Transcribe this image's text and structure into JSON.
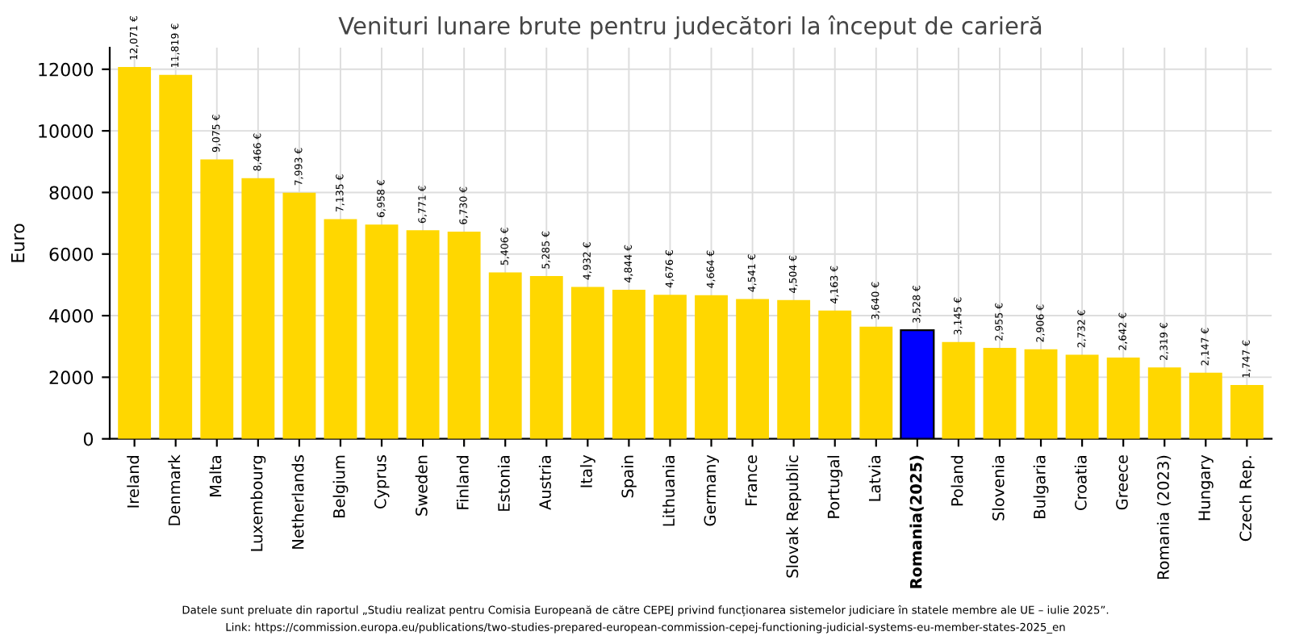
{
  "chart_data": {
    "type": "bar",
    "title": "Venituri lunare brute pentru judecători la început de carieră",
    "ylabel": "Euro",
    "categories": [
      "Ireland",
      "Denmark",
      "Malta",
      "Luxembourg",
      "Netherlands",
      "Belgium",
      "Cyprus",
      "Sweden",
      "Finland",
      "Estonia",
      "Austria",
      "Italy",
      "Spain",
      "Lithuania",
      "Germany",
      "France",
      "Slovak Republic",
      "Portugal",
      "Latvia",
      "Romania(2025)",
      "Poland",
      "Slovenia",
      "Bulgaria",
      "Croatia",
      "Greece",
      "Romania (2023)",
      "Hungary",
      "Czech Rep."
    ],
    "values": [
      12071,
      11819,
      9075,
      8466,
      7993,
      7135,
      6958,
      6771,
      6730,
      5406,
      5285,
      4932,
      4844,
      4676,
      4664,
      4541,
      4504,
      4163,
      3640,
      3528,
      3145,
      2955,
      2906,
      2732,
      2642,
      2319,
      2147,
      1747
    ],
    "value_labels": [
      "12,071 €",
      "11,819 €",
      "9,075 €",
      "8,466 €",
      "7,993 €",
      "7,135 €",
      "6,958 €",
      "6,771 €",
      "6,730 €",
      "5,406 €",
      "5,285 €",
      "4,932 €",
      "4,844 €",
      "4,676 €",
      "4,664 €",
      "4,541 €",
      "4,504 €",
      "4,163 €",
      "3,640 €",
      "3,528 €",
      "3,145 €",
      "2,955 €",
      "2,906 €",
      "2,732 €",
      "2,642 €",
      "2,319 €",
      "2,147 €",
      "1,747 €"
    ],
    "colors": [
      "#ffd700",
      "#ffd700",
      "#ffd700",
      "#ffd700",
      "#ffd700",
      "#ffd700",
      "#ffd700",
      "#ffd700",
      "#ffd700",
      "#ffd700",
      "#ffd700",
      "#ffd700",
      "#ffd700",
      "#ffd700",
      "#ffd700",
      "#ffd700",
      "#ffd700",
      "#ffd700",
      "#ffd700",
      "#0000ff",
      "#ffd700",
      "#ffd700",
      "#ffd700",
      "#ffd700",
      "#ffd700",
      "#ffd700",
      "#ffd700",
      "#ffd700"
    ],
    "ylim": [
      0,
      12700
    ],
    "yticks": [
      0,
      2000,
      4000,
      6000,
      8000,
      10000,
      12000
    ],
    "grid": true,
    "annotations": [
      "Datele sunt preluate din raportul „Studiu realizat pentru Comisia Europeană de către CEPEJ privind funcționarea sistemelor judiciare în statele membre ale UE – iulie 2025”.",
      "Link: https://commission.europa.eu/publications/two-studies-prepared-european-commission-cepej-functioning-judicial-systems-eu-member-states-2025_en"
    ]
  }
}
